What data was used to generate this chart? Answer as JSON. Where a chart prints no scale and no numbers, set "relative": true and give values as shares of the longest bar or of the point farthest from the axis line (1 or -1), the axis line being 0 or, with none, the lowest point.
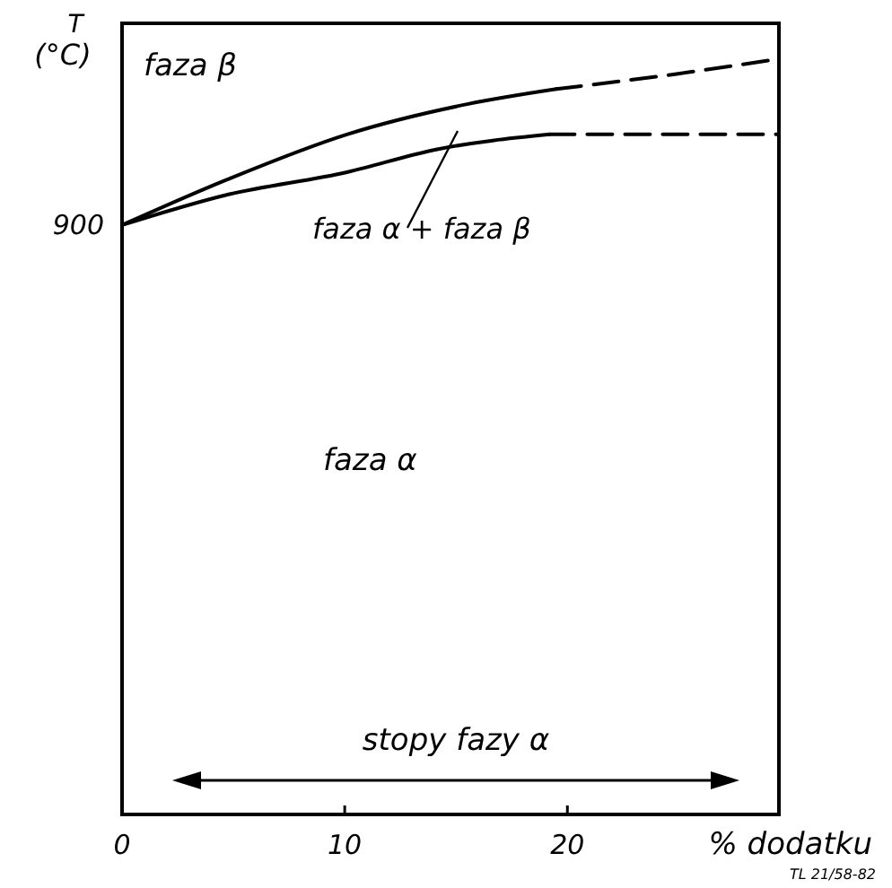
{
  "chart_data": {
    "type": "line",
    "relative": true,
    "xlabel": "% dodatku",
    "ylabel": "T (°C)",
    "xlim": [
      0,
      29.5
    ],
    "xticks": [
      0,
      10,
      20
    ],
    "grid": false,
    "marker": "none",
    "annotations": [
      "faza β",
      "faza α + faza β",
      "faza α",
      "stopy fazy α",
      {
        "text": "900",
        "x": 0,
        "y": 0.78
      },
      "TL 21/58-82"
    ],
    "series": [
      {
        "color": "#000000",
        "line_style": "solid",
        "x": [
          0,
          4.7,
          10.1,
          15.5,
          19.5
        ],
        "values": [
          0.78,
          0.84,
          0.9,
          0.94,
          0.96
        ]
      },
      {
        "color": "#000000",
        "line_style": "dashed",
        "x": [
          19.5,
          24.9,
          29.5
        ],
        "values": [
          0.96,
          0.98,
          1
        ]
      },
      {
        "color": "#000000",
        "line_style": "solid",
        "x": [
          0,
          4.7,
          10.1,
          14.1,
          19.2
        ],
        "values": [
          0.78,
          0.82,
          0.85,
          0.88,
          0.9
        ]
      },
      {
        "color": "#000000",
        "line_style": "dashed",
        "x": [
          19.2,
          29.5
        ],
        "values": [
          0.9,
          0.9
        ]
      }
    ]
  }
}
